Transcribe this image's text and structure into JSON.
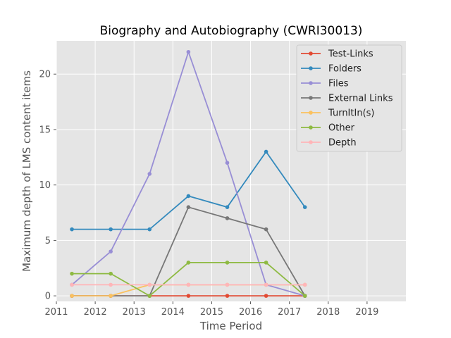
{
  "chart_data": {
    "type": "line",
    "title": "Biography and Autobiography (CWRI30013)",
    "xlabel": "Time Period",
    "ylabel": "Maximum depth of LMS content items",
    "xlim": [
      2011,
      2020
    ],
    "ylim": [
      -0.5,
      23.0
    ],
    "xticks": [
      "2011",
      "2012",
      "2013",
      "2014",
      "2015",
      "2016",
      "2017",
      "2018",
      "2019"
    ],
    "yticks": [
      "0",
      "5",
      "10",
      "15",
      "20"
    ],
    "grid": true,
    "legend_position": "top-right",
    "x": [
      2011.4,
      2012.4,
      2013.4,
      2014.4,
      2015.4,
      2016.4,
      2017.4
    ],
    "series": [
      {
        "name": "Test-Links",
        "color": "#e24a33",
        "values": [
          0,
          0,
          0,
          0,
          0,
          0,
          0
        ]
      },
      {
        "name": "Folders",
        "color": "#348abd",
        "values": [
          6,
          6,
          6,
          9,
          8,
          13,
          8
        ]
      },
      {
        "name": "Files",
        "color": "#988ed5",
        "values": [
          1,
          4,
          11,
          22,
          12,
          1,
          0
        ]
      },
      {
        "name": "External Links",
        "color": "#777777",
        "values": [
          0,
          0,
          0,
          8,
          7,
          6,
          0
        ]
      },
      {
        "name": "TurnItIn(s)",
        "color": "#fbc15e",
        "values": [
          0,
          0,
          1,
          1,
          1,
          1,
          1
        ]
      },
      {
        "name": "Other",
        "color": "#8eba42",
        "values": [
          2,
          2,
          0,
          3,
          3,
          3,
          0
        ]
      },
      {
        "name": "Depth",
        "color": "#ffb5b8",
        "values": [
          1,
          1,
          1,
          1,
          1,
          1,
          1
        ]
      }
    ]
  }
}
